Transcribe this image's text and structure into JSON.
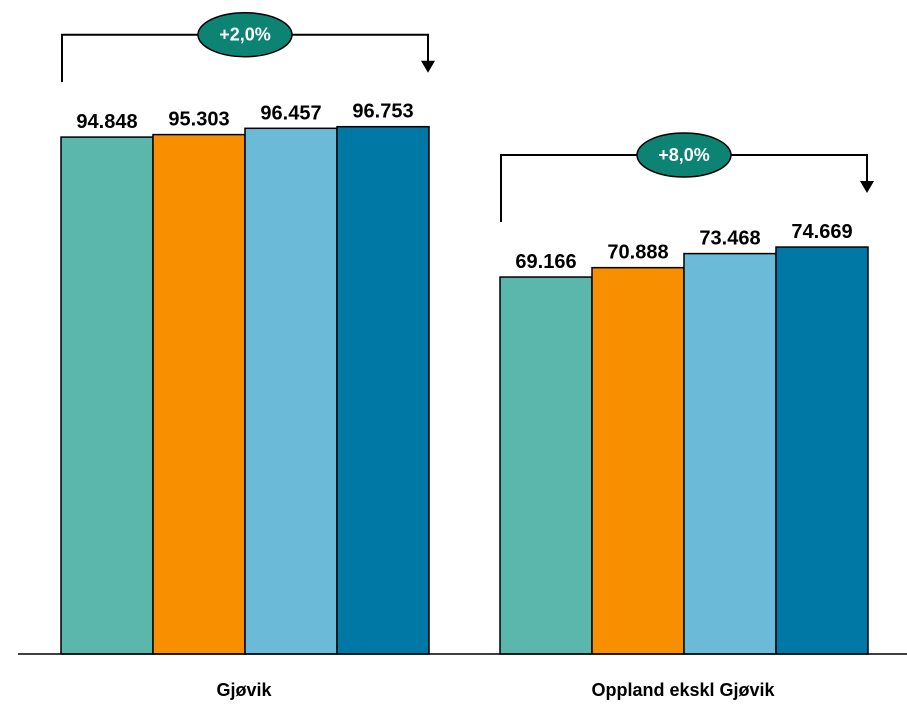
{
  "chart_data": {
    "type": "bar",
    "categories": [
      "Gjøvik",
      "Oppland ekskl Gjøvik"
    ],
    "series": [
      {
        "values": [
          94848,
          69166
        ],
        "labels": [
          "94.848",
          "69.166"
        ],
        "color": "#5bb6ac"
      },
      {
        "values": [
          95303,
          70888
        ],
        "labels": [
          "95.303",
          "70.888"
        ],
        "color": "#f88f00"
      },
      {
        "values": [
          96457,
          73468
        ],
        "labels": [
          "96.457",
          "73.468"
        ],
        "color": "#6bbad8"
      },
      {
        "values": [
          96753,
          74669
        ],
        "labels": [
          "96.753",
          "74.669"
        ],
        "color": "#0078a6"
      }
    ],
    "annotations": [
      {
        "category": "Gjøvik",
        "text": "+2,0%",
        "color": "#0d8374"
      },
      {
        "category": "Oppland ekskl Gjøvik",
        "text": "+8,0%",
        "color": "#0d8374"
      }
    ],
    "ylim": [
      0,
      100000
    ],
    "grid": false,
    "legend": "none"
  }
}
